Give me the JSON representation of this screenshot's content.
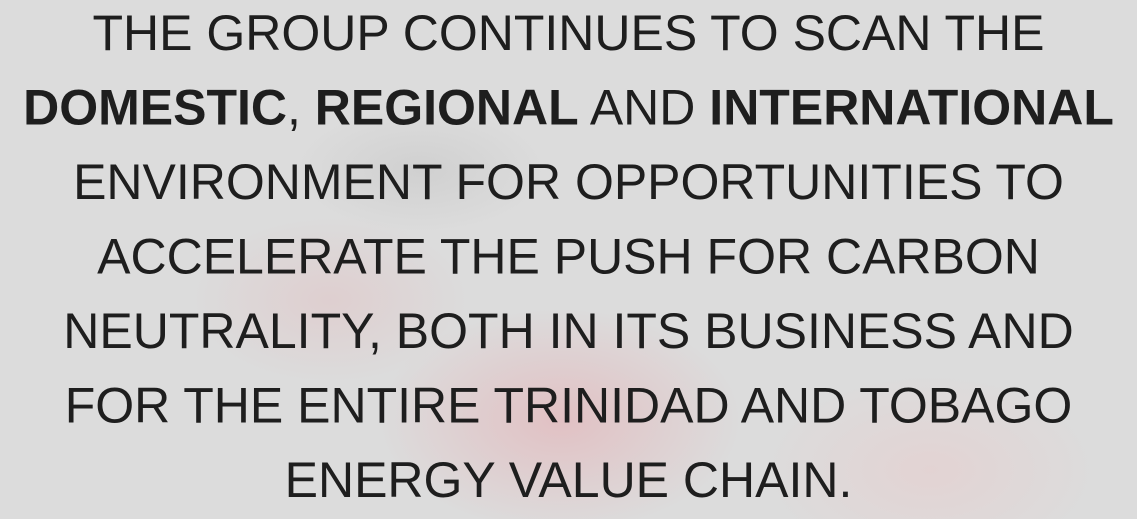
{
  "text": {
    "lines": [
      [
        {
          "text": "THE GROUP CONTINUES TO SCAN THE",
          "bold": false
        }
      ],
      [
        {
          "text": "DOMESTIC",
          "bold": true
        },
        {
          "text": ", ",
          "bold": false
        },
        {
          "text": "REGIONAL",
          "bold": true
        },
        {
          "text": " AND ",
          "bold": false
        },
        {
          "text": "INTERNATIONAL",
          "bold": true
        }
      ],
      [
        {
          "text": "ENVIRONMENT FOR OPPORTUNITIES TO",
          "bold": false
        }
      ],
      [
        {
          "text": "ACCELERATE THE PUSH FOR CARBON",
          "bold": false
        }
      ],
      [
        {
          "text": "NEUTRALITY, BOTH IN ITS BUSINESS AND",
          "bold": false
        }
      ],
      [
        {
          "text": "FOR THE ENTIRE TRINIDAD AND TOBAGO",
          "bold": false
        }
      ],
      [
        {
          "text": "ENERGY VALUE CHAIN.",
          "bold": false
        }
      ]
    ]
  }
}
